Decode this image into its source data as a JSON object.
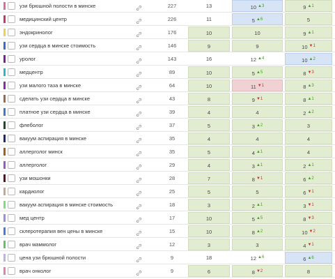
{
  "table": {
    "rows": [
      {
        "color": "#e06aa0",
        "keyword": "узи брюшной полости в минске",
        "frequency": 227,
        "positions": [
          {
            "value": 13,
            "bg": "white"
          },
          {
            "value": 10,
            "change": 3,
            "dir": "up",
            "bg": "blue"
          },
          {
            "value": 9,
            "change": 1,
            "dir": "up",
            "bg": "green"
          }
        ]
      },
      {
        "color": "#c8356a",
        "keyword": "медицинский центр",
        "frequency": 226,
        "positions": [
          {
            "value": 11,
            "bg": "white"
          },
          {
            "value": 5,
            "change": 6,
            "dir": "up",
            "bg": "blue"
          },
          {
            "value": 5,
            "bg": "green"
          }
        ]
      },
      {
        "color": "#e8d93a",
        "keyword": "эндокринолог",
        "frequency": 176,
        "positions": [
          {
            "value": 10,
            "bg": "green"
          },
          {
            "value": 10,
            "bg": "green"
          },
          {
            "value": 9,
            "change": 1,
            "dir": "up",
            "bg": "green"
          }
        ]
      },
      {
        "color": "#3a6fc0",
        "keyword": "узи сердца в минске стоимость",
        "frequency": 146,
        "positions": [
          {
            "value": 9,
            "bg": "green"
          },
          {
            "value": 9,
            "bg": "green"
          },
          {
            "value": 10,
            "change": 1,
            "dir": "down",
            "bg": "green"
          }
        ]
      },
      {
        "color": "#7a1f8c",
        "keyword": "уролог",
        "frequency": 143,
        "positions": [
          {
            "value": 16,
            "bg": "white"
          },
          {
            "value": 12,
            "change": 4,
            "dir": "up",
            "bg": "white"
          },
          {
            "value": 10,
            "change": 2,
            "dir": "up",
            "bg": "blue"
          }
        ]
      },
      {
        "color": "#2bb8c8",
        "keyword": "медцентр",
        "frequency": 89,
        "positions": [
          {
            "value": 10,
            "bg": "green"
          },
          {
            "value": 5,
            "change": 5,
            "dir": "up",
            "bg": "green"
          },
          {
            "value": 8,
            "change": 3,
            "dir": "down",
            "bg": "green"
          }
        ]
      },
      {
        "color": "#8a2aa8",
        "keyword": "узи малого таза в минске",
        "frequency": 64,
        "positions": [
          {
            "value": 10,
            "bg": "green"
          },
          {
            "value": 11,
            "change": 1,
            "dir": "down",
            "bg": "red"
          },
          {
            "value": 8,
            "change": 3,
            "dir": "up",
            "bg": "green"
          }
        ]
      },
      {
        "color": "#9a6a4a",
        "keyword": "сделать узи сердца в минске",
        "frequency": 43,
        "positions": [
          {
            "value": 8,
            "bg": "green"
          },
          {
            "value": 9,
            "change": 1,
            "dir": "down",
            "bg": "green"
          },
          {
            "value": 8,
            "change": 1,
            "dir": "up",
            "bg": "green"
          }
        ]
      },
      {
        "color": "#3a7ad0",
        "keyword": "платное узи сердца в минске",
        "frequency": 39,
        "positions": [
          {
            "value": 4,
            "bg": "green"
          },
          {
            "value": 4,
            "bg": "green"
          },
          {
            "value": 2,
            "change": 2,
            "dir": "up",
            "bg": "green"
          }
        ]
      },
      {
        "color": "#1f4a2a",
        "keyword": "флеболог",
        "frequency": 37,
        "positions": [
          {
            "value": 5,
            "bg": "green"
          },
          {
            "value": 3,
            "change": 2,
            "dir": "up",
            "bg": "green"
          },
          {
            "value": 3,
            "bg": "green"
          }
        ]
      },
      {
        "color": "#1a2a6a",
        "keyword": "вакуум аспирация в минске",
        "frequency": 35,
        "positions": [
          {
            "value": 4,
            "bg": "green"
          },
          {
            "value": 4,
            "bg": "green"
          },
          {
            "value": 4,
            "bg": "green"
          }
        ]
      },
      {
        "color": "#a0601a",
        "keyword": "аллерголог минск",
        "frequency": 35,
        "positions": [
          {
            "value": 5,
            "bg": "green"
          },
          {
            "value": 4,
            "change": 1,
            "dir": "up",
            "bg": "green"
          },
          {
            "value": 4,
            "bg": "green"
          }
        ]
      },
      {
        "color": "#9a5ac0",
        "keyword": "аллерголог",
        "frequency": 29,
        "positions": [
          {
            "value": 4,
            "bg": "green"
          },
          {
            "value": 3,
            "change": 1,
            "dir": "up",
            "bg": "green"
          },
          {
            "value": 2,
            "change": 1,
            "dir": "up",
            "bg": "green"
          }
        ]
      },
      {
        "color": "#5a1020",
        "keyword": "узи мошонки",
        "frequency": 28,
        "positions": [
          {
            "value": 7,
            "bg": "green"
          },
          {
            "value": 8,
            "change": 1,
            "dir": "down",
            "bg": "green"
          },
          {
            "value": 6,
            "change": 2,
            "dir": "up",
            "bg": "green"
          }
        ]
      },
      {
        "color": "#c8a888",
        "keyword": "кардиолог",
        "frequency": 25,
        "positions": [
          {
            "value": 5,
            "bg": "green"
          },
          {
            "value": 5,
            "bg": "green"
          },
          {
            "value": 6,
            "change": 1,
            "dir": "down",
            "bg": "green"
          }
        ]
      },
      {
        "color": "#7ae07a",
        "keyword": "вакуум аспирация в минске стоимость",
        "frequency": 18,
        "positions": [
          {
            "value": 3,
            "bg": "green"
          },
          {
            "value": 2,
            "change": 1,
            "dir": "up",
            "bg": "green"
          },
          {
            "value": 3,
            "change": 1,
            "dir": "down",
            "bg": "green"
          }
        ]
      },
      {
        "color": "#a08ae0",
        "keyword": "мед центр",
        "frequency": 17,
        "positions": [
          {
            "value": 10,
            "bg": "green"
          },
          {
            "value": 5,
            "change": 5,
            "dir": "up",
            "bg": "green"
          },
          {
            "value": 8,
            "change": 3,
            "dir": "down",
            "bg": "green"
          }
        ]
      },
      {
        "color": "#4a7ad8",
        "keyword": "склеротерапия вен цены в минске",
        "frequency": 15,
        "positions": [
          {
            "value": 10,
            "bg": "green"
          },
          {
            "value": 8,
            "change": 2,
            "dir": "up",
            "bg": "green"
          },
          {
            "value": 10,
            "change": 2,
            "dir": "down",
            "bg": "green"
          }
        ]
      },
      {
        "color": "#5ac86a",
        "keyword": "врач маммолог",
        "frequency": 12,
        "positions": [
          {
            "value": 3,
            "bg": "green"
          },
          {
            "value": 3,
            "bg": "green"
          },
          {
            "value": 4,
            "change": 1,
            "dir": "down",
            "bg": "green"
          }
        ]
      },
      {
        "color": "#c0b0e8",
        "keyword": "цена узи брюшной полости",
        "frequency": 9,
        "positions": [
          {
            "value": 18,
            "bg": "white"
          },
          {
            "value": 12,
            "change": 6,
            "dir": "up",
            "bg": "white"
          },
          {
            "value": 6,
            "change": 6,
            "dir": "up",
            "bg": "blue"
          }
        ]
      },
      {
        "color": "#e080b0",
        "keyword": "врач онколог",
        "frequency": 9,
        "positions": [
          {
            "value": 6,
            "bg": "green"
          },
          {
            "value": 8,
            "change": 2,
            "dir": "down",
            "bg": "green"
          },
          {
            "value": 8,
            "bg": "green"
          }
        ]
      }
    ]
  }
}
